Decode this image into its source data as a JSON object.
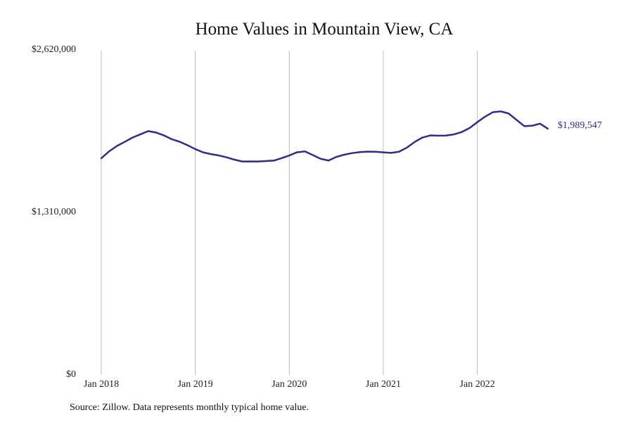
{
  "title": "Home Values in Mountain View, CA",
  "source_note": "Source: Zillow. Data represents monthly typical home value.",
  "colors": {
    "line": "#2e2d8f",
    "grid": "#bbbbbb"
  },
  "chart_data": {
    "type": "line",
    "title": "Home Values in Mountain View, CA",
    "xlabel": "",
    "ylabel": "",
    "ylim": [
      0,
      2620000
    ],
    "yticks": [
      "$2,620,000",
      "$1,310,000",
      "$0"
    ],
    "ytick_values": [
      2620000,
      1310000,
      0
    ],
    "xticks": [
      "Jan 2018",
      "Jan 2019",
      "Jan 2020",
      "Jan 2021",
      "Jan 2022"
    ],
    "xtick_values": [
      "2018-01",
      "2019-01",
      "2020-01",
      "2021-01",
      "2022-01"
    ],
    "grid": "vertical",
    "end_label": "$1,989,547",
    "x": [
      "2018-01",
      "2018-02",
      "2018-03",
      "2018-04",
      "2018-05",
      "2018-06",
      "2018-07",
      "2018-08",
      "2018-09",
      "2018-10",
      "2018-11",
      "2018-12",
      "2019-01",
      "2019-02",
      "2019-03",
      "2019-04",
      "2019-05",
      "2019-06",
      "2019-07",
      "2019-08",
      "2019-09",
      "2019-10",
      "2019-11",
      "2019-12",
      "2020-01",
      "2020-02",
      "2020-03",
      "2020-04",
      "2020-05",
      "2020-06",
      "2020-07",
      "2020-08",
      "2020-09",
      "2020-10",
      "2020-11",
      "2020-12",
      "2021-01",
      "2021-02",
      "2021-03",
      "2021-04",
      "2021-05",
      "2021-06",
      "2021-07",
      "2021-08",
      "2021-09",
      "2021-10",
      "2021-11",
      "2021-12",
      "2022-01",
      "2022-02",
      "2022-03",
      "2022-04",
      "2022-05",
      "2022-06",
      "2022-07",
      "2022-08",
      "2022-09",
      "2022-10"
    ],
    "series": [
      {
        "values": [
          1750000,
          1806000,
          1850000,
          1883000,
          1918000,
          1944000,
          1970000,
          1958000,
          1935000,
          1904000,
          1884000,
          1856000,
          1824000,
          1798000,
          1784000,
          1773000,
          1758000,
          1739000,
          1724000,
          1725000,
          1724000,
          1728000,
          1731000,
          1751000,
          1773000,
          1799000,
          1806000,
          1776000,
          1746000,
          1732000,
          1761000,
          1779000,
          1792000,
          1800000,
          1804000,
          1803000,
          1798000,
          1794000,
          1803000,
          1836000,
          1882000,
          1918000,
          1935000,
          1933000,
          1934000,
          1943000,
          1962000,
          1994000,
          2042000,
          2087000,
          2123000,
          2129000,
          2112000,
          2061000,
          2010000,
          2013000,
          2030000,
          1989547
        ]
      }
    ]
  }
}
